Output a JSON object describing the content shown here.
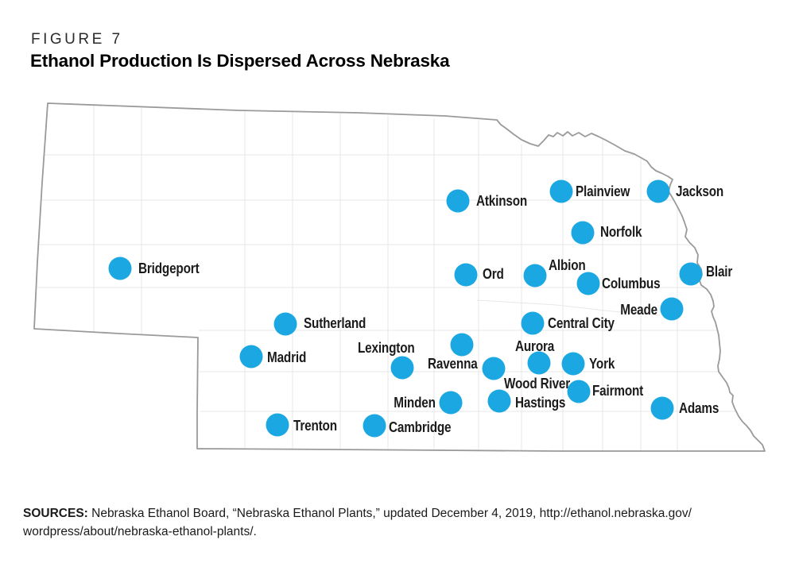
{
  "figure": {
    "label": "FIGURE 7",
    "title": "Ethanol Production Is Dispersed Across Nebraska"
  },
  "map": {
    "region": "Nebraska",
    "dot_color": "#1AA7E2",
    "state_border_color": "#9A9A9A",
    "county_line_color": "#E7E7E7",
    "cities": [
      {
        "name": "Atkinson",
        "dot": [
          576,
          253
        ],
        "label": [
          599,
          253
        ],
        "anchor": "start"
      },
      {
        "name": "Plainview",
        "dot": [
          706,
          241
        ],
        "label": [
          724,
          241
        ],
        "anchor": "start"
      },
      {
        "name": "Jackson",
        "dot": [
          828,
          241
        ],
        "label": [
          850,
          241
        ],
        "anchor": "start"
      },
      {
        "name": "Norfolk",
        "dot": [
          733,
          293
        ],
        "label": [
          755,
          292
        ],
        "anchor": "start"
      },
      {
        "name": "Ord",
        "dot": [
          586,
          346
        ],
        "label": [
          607,
          345
        ],
        "anchor": "start"
      },
      {
        "name": "Albion",
        "dot": [
          673,
          347
        ],
        "label": [
          690,
          334
        ],
        "anchor": "start"
      },
      {
        "name": "Columbus",
        "dot": [
          740,
          357
        ],
        "label": [
          757,
          357
        ],
        "anchor": "start"
      },
      {
        "name": "Blair",
        "dot": [
          869,
          345
        ],
        "label": [
          888,
          342
        ],
        "anchor": "start"
      },
      {
        "name": "Bridgeport",
        "dot": [
          151,
          338
        ],
        "label": [
          174,
          338
        ],
        "anchor": "start"
      },
      {
        "name": "Meade",
        "dot": [
          845,
          389
        ],
        "label": [
          827,
          390
        ],
        "anchor": "end"
      },
      {
        "name": "Central City",
        "dot": [
          670,
          407
        ],
        "label": [
          689,
          407
        ],
        "anchor": "start"
      },
      {
        "name": "Sutherland",
        "dot": [
          359,
          408
        ],
        "label": [
          382,
          407
        ],
        "anchor": "start"
      },
      {
        "name": "Aurora",
        "dot": [
          678,
          457
        ],
        "label": [
          648,
          436
        ],
        "anchor": "start"
      },
      {
        "name": "York",
        "dot": [
          721,
          458
        ],
        "label": [
          741,
          458
        ],
        "anchor": "start"
      },
      {
        "name": "Madrid",
        "dot": [
          316,
          449
        ],
        "label": [
          336,
          450
        ],
        "anchor": "start"
      },
      {
        "name": "Lexington",
        "dot": [
          506,
          463
        ],
        "label": [
          450,
          438
        ],
        "anchor": "start"
      },
      {
        "name": "Ravenna",
        "dot": [
          581,
          434
        ],
        "label": [
          538,
          458
        ],
        "anchor": "start"
      },
      {
        "name": "Wood River",
        "dot": [
          621,
          464
        ],
        "label": [
          634,
          483
        ],
        "anchor": "start"
      },
      {
        "name": "Fairmont",
        "dot": [
          728,
          493
        ],
        "label": [
          745,
          492
        ],
        "anchor": "start"
      },
      {
        "name": "Minden",
        "dot": [
          567,
          507
        ],
        "label": [
          548,
          507
        ],
        "anchor": "end"
      },
      {
        "name": "Hastings",
        "dot": [
          628,
          505
        ],
        "label": [
          648,
          507
        ],
        "anchor": "start"
      },
      {
        "name": "Adams",
        "dot": [
          833,
          514
        ],
        "label": [
          854,
          514
        ],
        "anchor": "start"
      },
      {
        "name": "Trenton",
        "dot": [
          349,
          535
        ],
        "label": [
          369,
          536
        ],
        "anchor": "start"
      },
      {
        "name": "Cambridge",
        "dot": [
          471,
          536
        ],
        "label": [
          489,
          538
        ],
        "anchor": "start"
      }
    ]
  },
  "sources": {
    "label": "SOURCES:",
    "line1": "Nebraska Ethanol Board, “Nebraska Ethanol Plants,” updated December 4, 2019, http://ethanol.nebraska.gov/",
    "line2": "wordpress/about/nebraska-ethanol-plants/."
  }
}
